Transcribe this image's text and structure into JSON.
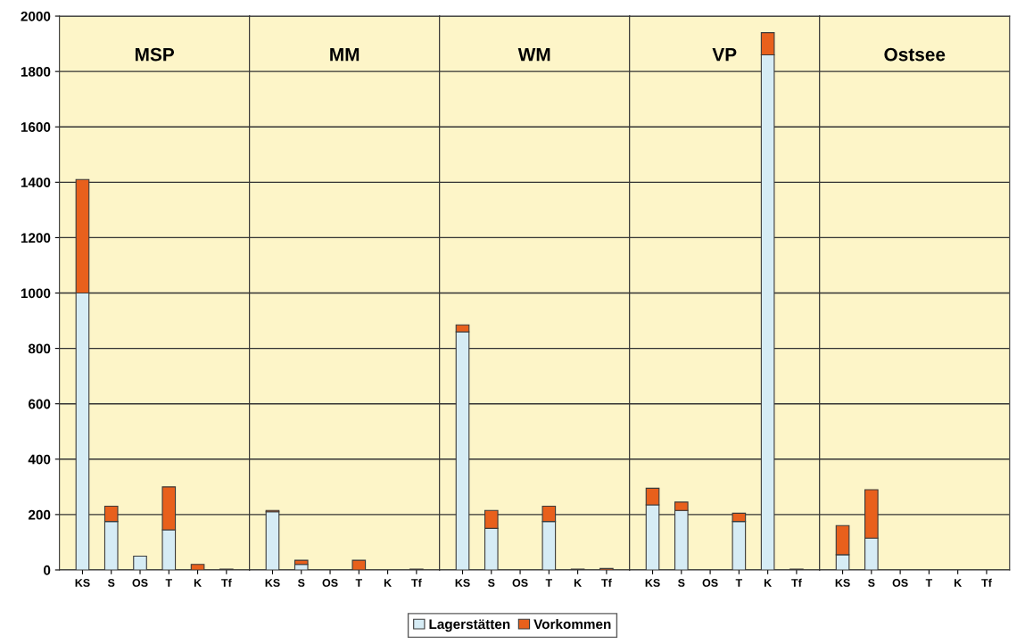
{
  "chart_data": [
    {
      "type": "bar",
      "title": "MSP",
      "categories": [
        "KS",
        "S",
        "OS",
        "T",
        "K",
        "Tf"
      ],
      "stacked": true,
      "ylim": [
        0,
        2000
      ],
      "yticks": [
        0,
        200,
        400,
        600,
        800,
        1000,
        1200,
        1400,
        1600,
        1800,
        2000
      ],
      "grid": "y",
      "legend": "bottom",
      "series": [
        {
          "name": "Lagerstätten",
          "color": "#d6ecf5",
          "values": [
            1000,
            175,
            50,
            145,
            0,
            0
          ]
        },
        {
          "name": "Vorkommen",
          "color": "#e8601c",
          "values": [
            410,
            55,
            0,
            155,
            20,
            3
          ]
        }
      ]
    },
    {
      "type": "bar",
      "title": "MM",
      "categories": [
        "KS",
        "S",
        "OS",
        "T",
        "K",
        "Tf"
      ],
      "stacked": true,
      "ylim": [
        0,
        2000
      ],
      "yticks": [
        0,
        200,
        400,
        600,
        800,
        1000,
        1200,
        1400,
        1600,
        1800,
        2000
      ],
      "grid": "y",
      "tick_labels": "x",
      "series": [
        {
          "color": "#d6ecf5",
          "values": [
            210,
            20,
            0,
            0,
            0,
            0
          ]
        },
        {
          "color": "#e8601c",
          "values": [
            5,
            15,
            0,
            35,
            0,
            3
          ]
        }
      ]
    },
    {
      "type": "bar",
      "title": "WM",
      "categories": [
        "KS",
        "S",
        "OS",
        "T",
        "K",
        "Tf"
      ],
      "stacked": true,
      "ylim": [
        0,
        2000
      ],
      "yticks": [
        0,
        200,
        400,
        600,
        800,
        1000,
        1200,
        1400,
        1600,
        1800,
        2000
      ],
      "grid": "y",
      "tick_labels": "x",
      "series": [
        {
          "color": "#d6ecf5",
          "values": [
            860,
            150,
            0,
            175,
            0,
            0
          ]
        },
        {
          "color": "#e8601c",
          "values": [
            25,
            65,
            0,
            55,
            3,
            5
          ]
        }
      ]
    },
    {
      "type": "bar",
      "title": "VP",
      "categories": [
        "KS",
        "S",
        "OS",
        "T",
        "K",
        "Tf"
      ],
      "stacked": true,
      "ylim": [
        0,
        2000
      ],
      "yticks": [
        0,
        200,
        400,
        600,
        800,
        1000,
        1200,
        1400,
        1600,
        1800,
        2000
      ],
      "grid": "y",
      "tick_labels": "x",
      "series": [
        {
          "color": "#d6ecf5",
          "values": [
            235,
            215,
            0,
            175,
            1860,
            0
          ]
        },
        {
          "color": "#e8601c",
          "values": [
            60,
            30,
            0,
            30,
            80,
            3
          ]
        }
      ]
    },
    {
      "type": "bar",
      "title": "Ostsee",
      "categories": [
        "KS",
        "S",
        "OS",
        "T",
        "K",
        "Tf"
      ],
      "stacked": true,
      "ylim": [
        0,
        2000
      ],
      "yticks": [
        0,
        200,
        400,
        600,
        800,
        1000,
        1200,
        1400,
        1600,
        1800,
        2000
      ],
      "grid": "y",
      "tick_labels": "x",
      "series": [
        {
          "color": "#d6ecf5",
          "values": [
            55,
            115,
            0,
            0,
            0,
            0
          ]
        },
        {
          "color": "#e8601c",
          "values": [
            105,
            175,
            0,
            0,
            0,
            0
          ]
        }
      ]
    }
  ]
}
